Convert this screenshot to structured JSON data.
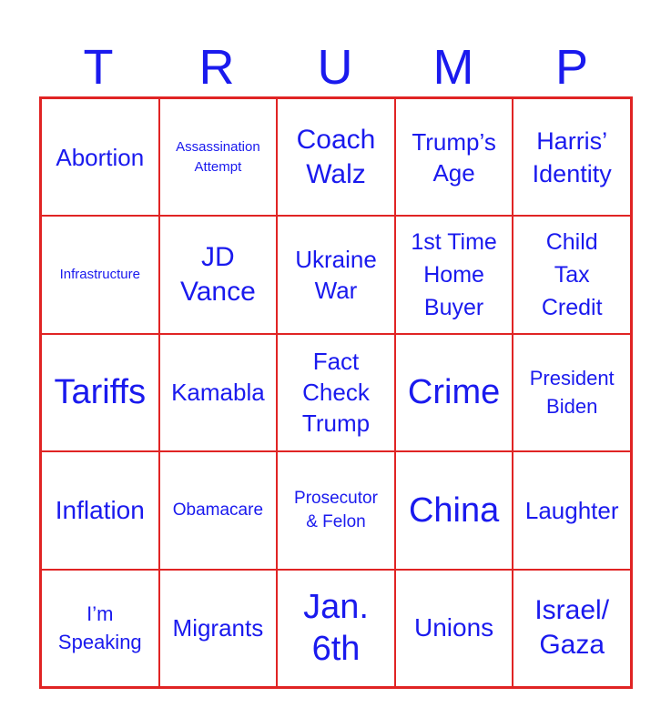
{
  "header": {
    "letters": [
      "T",
      "R",
      "U",
      "M",
      "P"
    ]
  },
  "board": {
    "cells": [
      "Abortion",
      "Assassination\nAttempt",
      "Coach\nWalz",
      "Trump’s\nAge",
      "Harris’\nIdentity",
      "Infrastructure",
      "JD\nVance",
      "Ukraine\nWar",
      "1st Time\nHome\nBuyer",
      "Child\nTax\nCredit",
      "Tariffs",
      "Kamabla",
      "Fact\nCheck\nTrump",
      "Crime",
      "President\nBiden",
      "Inflation",
      "Obamacare",
      "Prosecutor\n& Felon",
      "China",
      "Laughter",
      "I’m\nSpeaking",
      "Migrants",
      "Jan.\n6th",
      "Unions",
      "Israel/\nGaza"
    ]
  },
  "colors": {
    "text": "#1a1aee",
    "grid": "#e02424"
  }
}
